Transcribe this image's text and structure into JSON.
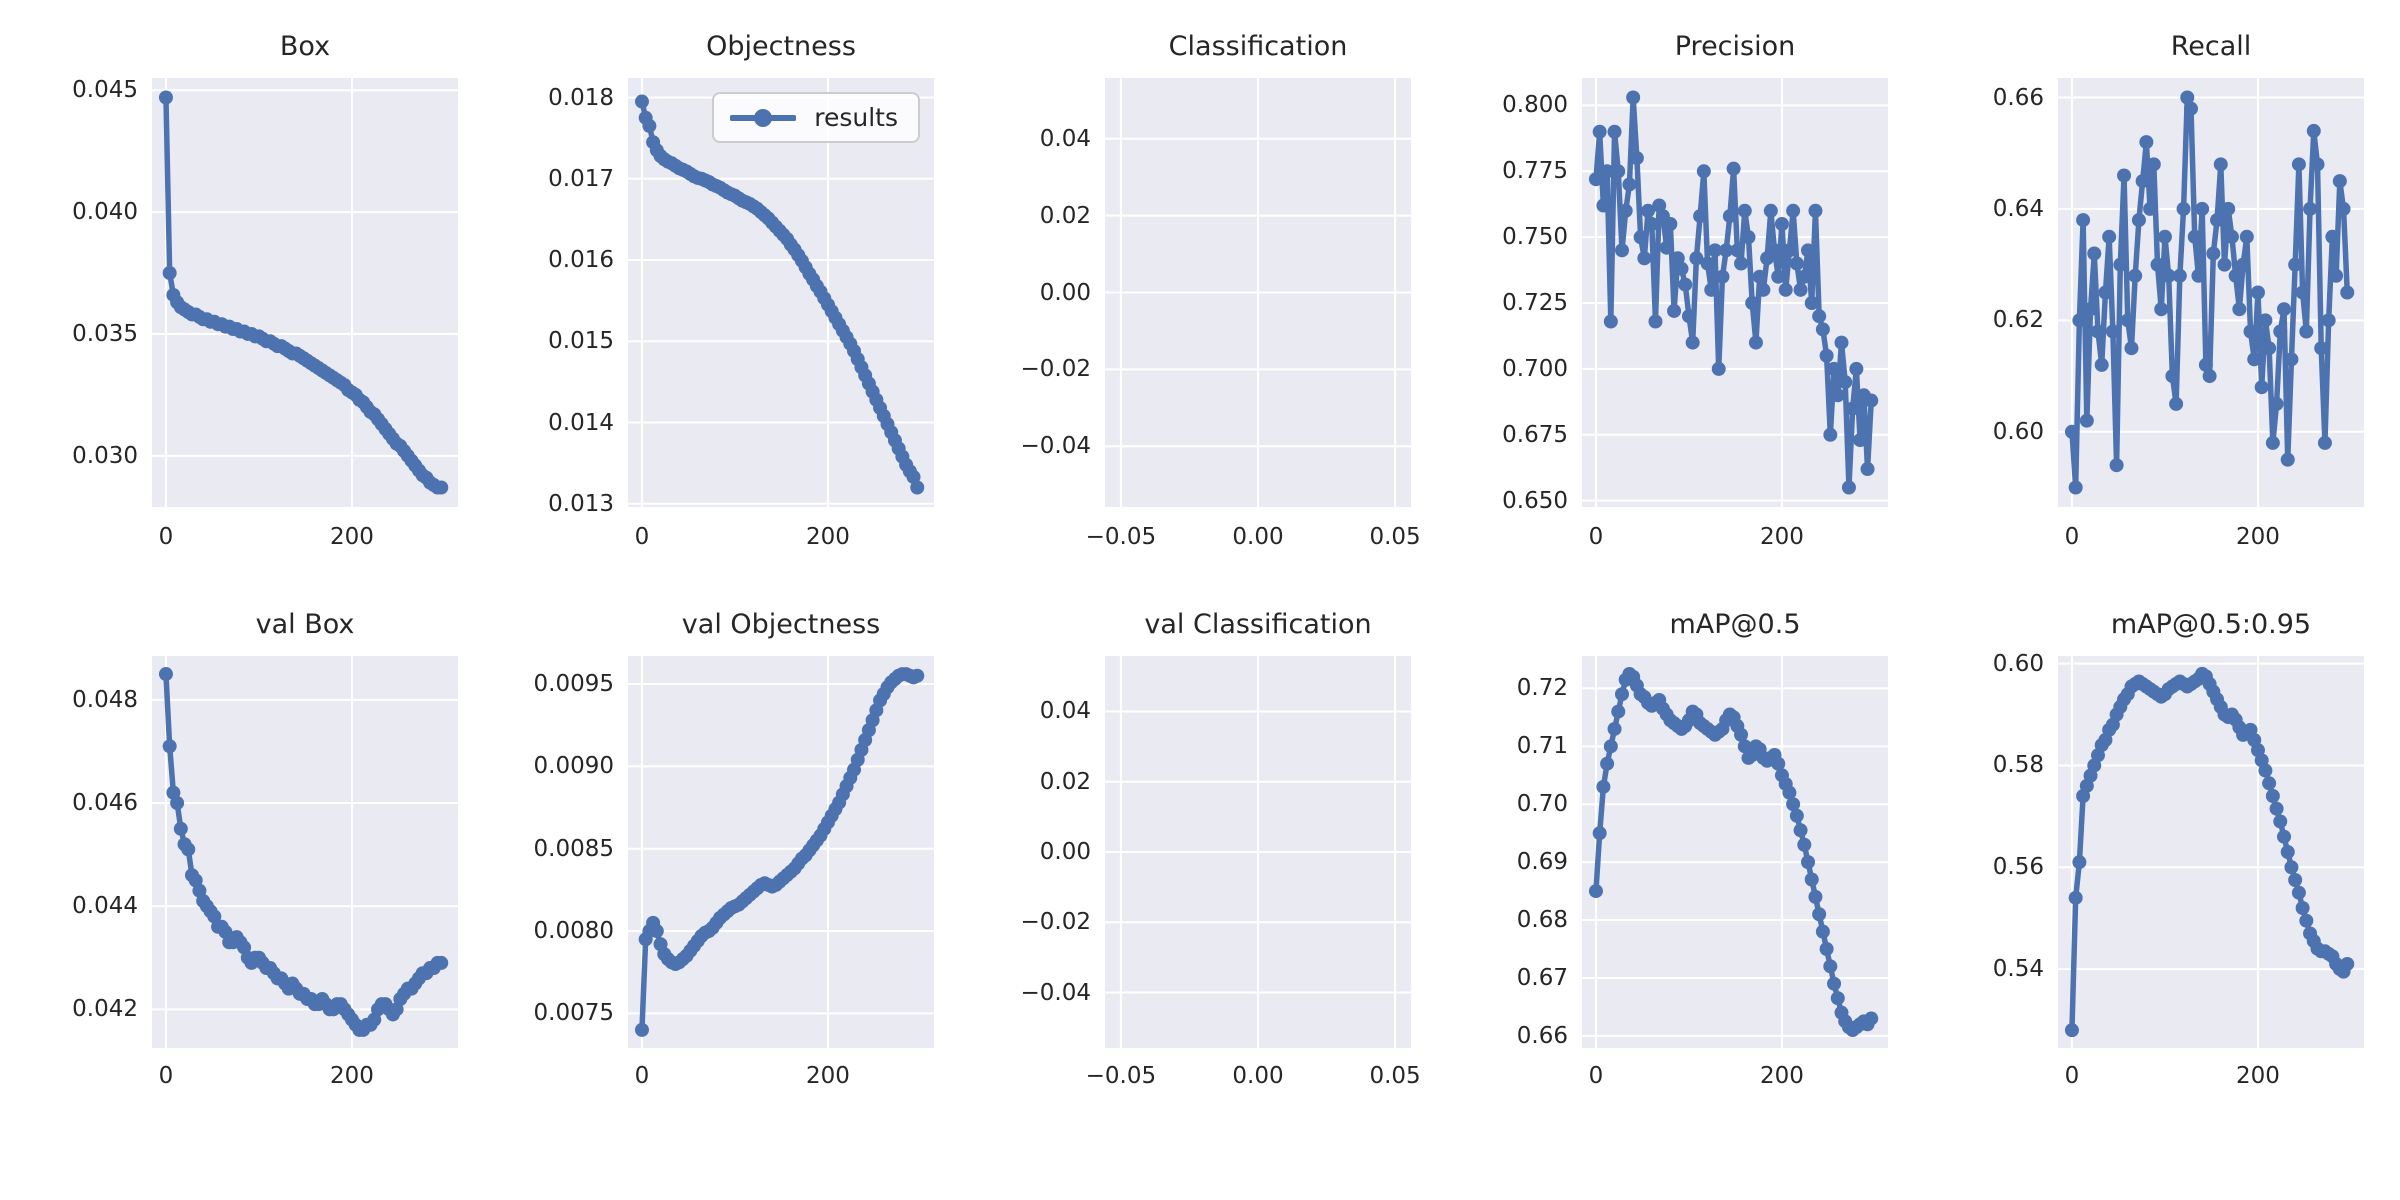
{
  "figure": {
    "background": "#ffffff",
    "axes_background": "#eaeaf2",
    "grid_color": "#ffffff",
    "line_color": "#4c72b0",
    "text_color": "#262626"
  },
  "legend": {
    "label": "results"
  },
  "epochs": [
    0,
    4,
    8,
    12,
    16,
    20,
    24,
    28,
    32,
    36,
    40,
    44,
    48,
    52,
    56,
    60,
    64,
    68,
    72,
    76,
    80,
    84,
    88,
    92,
    96,
    100,
    104,
    108,
    112,
    116,
    120,
    124,
    128,
    132,
    136,
    140,
    144,
    148,
    152,
    156,
    160,
    164,
    168,
    172,
    176,
    180,
    184,
    188,
    192,
    196,
    200,
    204,
    208,
    212,
    216,
    220,
    224,
    228,
    232,
    236,
    240,
    244,
    248,
    252,
    256,
    260,
    264,
    268,
    272,
    276,
    280,
    284,
    288,
    292,
    296
  ],
  "chart_data": [
    {
      "type": "line",
      "title": "Box",
      "series_name": "results",
      "xlim": [
        -15,
        314
      ],
      "ylim": [
        0.0279,
        0.0455
      ],
      "xticks": {
        "values": [
          0,
          200
        ],
        "labels": [
          "0",
          "200"
        ]
      },
      "yticks": {
        "values": [
          0.045,
          0.04,
          0.035,
          0.03
        ],
        "labels": [
          "0.045",
          "0.040",
          "0.035",
          "0.030"
        ]
      },
      "y": [
        0.0447,
        0.0375,
        0.0366,
        0.0363,
        0.0361,
        0.036,
        0.0359,
        0.0358,
        0.0358,
        0.0357,
        0.0356,
        0.0356,
        0.0355,
        0.0355,
        0.0354,
        0.0354,
        0.0353,
        0.0353,
        0.0352,
        0.0352,
        0.0351,
        0.0351,
        0.035,
        0.035,
        0.0349,
        0.0349,
        0.0348,
        0.0347,
        0.0347,
        0.0346,
        0.0345,
        0.0345,
        0.0344,
        0.0343,
        0.0342,
        0.0342,
        0.0341,
        0.034,
        0.0339,
        0.0338,
        0.0337,
        0.0336,
        0.0335,
        0.0334,
        0.0333,
        0.0332,
        0.0331,
        0.033,
        0.0329,
        0.0327,
        0.0326,
        0.0325,
        0.0323,
        0.0322,
        0.032,
        0.0318,
        0.0317,
        0.0315,
        0.0313,
        0.0311,
        0.0309,
        0.0307,
        0.0305,
        0.0304,
        0.0302,
        0.03,
        0.0298,
        0.0296,
        0.0294,
        0.0292,
        0.0291,
        0.0289,
        0.0288,
        0.0287,
        0.0287
      ]
    },
    {
      "type": "line",
      "title": "Objectness",
      "series_name": "results",
      "legend": true,
      "xlim": [
        -15,
        314
      ],
      "ylim": [
        0.01296,
        0.01824
      ],
      "xticks": {
        "values": [
          0,
          200
        ],
        "labels": [
          "0",
          "200"
        ]
      },
      "yticks": {
        "values": [
          0.018,
          0.017,
          0.016,
          0.015,
          0.014,
          0.013
        ],
        "labels": [
          "0.018",
          "0.017",
          "0.016",
          "0.015",
          "0.014",
          "0.013"
        ]
      },
      "y": [
        0.01795,
        0.01775,
        0.01765,
        0.01745,
        0.01735,
        0.01728,
        0.01724,
        0.01721,
        0.01719,
        0.01716,
        0.01713,
        0.01711,
        0.01709,
        0.01706,
        0.01703,
        0.01701,
        0.017,
        0.01698,
        0.01696,
        0.01693,
        0.01691,
        0.01689,
        0.01686,
        0.01683,
        0.01681,
        0.01679,
        0.01676,
        0.01673,
        0.01671,
        0.01669,
        0.01666,
        0.01663,
        0.01659,
        0.01655,
        0.01651,
        0.01646,
        0.01641,
        0.01636,
        0.01631,
        0.01626,
        0.01619,
        0.01613,
        0.01606,
        0.01599,
        0.01591,
        0.01583,
        0.01576,
        0.01568,
        0.01561,
        0.01553,
        0.01545,
        0.01537,
        0.01529,
        0.01521,
        0.01513,
        0.01505,
        0.01497,
        0.01488,
        0.01478,
        0.01468,
        0.01458,
        0.01448,
        0.01438,
        0.01428,
        0.01418,
        0.01408,
        0.01398,
        0.01388,
        0.01378,
        0.01368,
        0.01358,
        0.01348,
        0.0134,
        0.01333,
        0.0132
      ]
    },
    {
      "type": "empty",
      "title": "Classification",
      "xlim": [
        -0.0558,
        0.0558
      ],
      "ylim": [
        -0.0558,
        0.0558
      ],
      "xticks": {
        "values": [
          -0.05,
          0.0,
          0.05
        ],
        "labels": [
          "−0.05",
          "0.00",
          "0.05"
        ]
      },
      "yticks": {
        "values": [
          0.04,
          0.02,
          0.0,
          -0.02,
          -0.04
        ],
        "labels": [
          "0.04",
          "0.02",
          "0.00",
          "−0.02",
          "−0.04"
        ]
      }
    },
    {
      "type": "line",
      "title": "Precision",
      "series_name": "results",
      "xlim": [
        -15,
        314
      ],
      "ylim": [
        0.6476,
        0.8104
      ],
      "xticks": {
        "values": [
          0,
          200
        ],
        "labels": [
          "0",
          "200"
        ]
      },
      "yticks": {
        "values": [
          0.8,
          0.775,
          0.75,
          0.725,
          0.7,
          0.675,
          0.65
        ],
        "labels": [
          "0.800",
          "0.775",
          "0.750",
          "0.725",
          "0.700",
          "0.675",
          "0.650"
        ]
      },
      "y": [
        0.772,
        0.79,
        0.762,
        0.775,
        0.718,
        0.79,
        0.775,
        0.745,
        0.76,
        0.77,
        0.803,
        0.78,
        0.75,
        0.742,
        0.76,
        0.755,
        0.718,
        0.762,
        0.758,
        0.746,
        0.755,
        0.722,
        0.742,
        0.738,
        0.732,
        0.72,
        0.71,
        0.742,
        0.758,
        0.775,
        0.74,
        0.73,
        0.745,
        0.7,
        0.735,
        0.745,
        0.758,
        0.776,
        0.745,
        0.74,
        0.76,
        0.75,
        0.725,
        0.71,
        0.735,
        0.73,
        0.742,
        0.76,
        0.745,
        0.735,
        0.755,
        0.73,
        0.745,
        0.76,
        0.74,
        0.73,
        0.735,
        0.745,
        0.725,
        0.76,
        0.72,
        0.715,
        0.705,
        0.675,
        0.7,
        0.69,
        0.71,
        0.695,
        0.655,
        0.685,
        0.7,
        0.673,
        0.69,
        0.662,
        0.688
      ]
    },
    {
      "type": "line",
      "title": "Recall",
      "series_name": "results",
      "xlim": [
        -15,
        314
      ],
      "ylim": [
        0.5865,
        0.6635
      ],
      "xticks": {
        "values": [
          0,
          200
        ],
        "labels": [
          "0",
          "200"
        ]
      },
      "yticks": {
        "values": [
          0.66,
          0.64,
          0.62,
          0.6
        ],
        "labels": [
          "0.66",
          "0.64",
          "0.62",
          "0.60"
        ]
      },
      "y": [
        0.6,
        0.59,
        0.62,
        0.638,
        0.602,
        0.622,
        0.632,
        0.618,
        0.612,
        0.625,
        0.635,
        0.618,
        0.594,
        0.63,
        0.646,
        0.62,
        0.615,
        0.628,
        0.638,
        0.645,
        0.652,
        0.64,
        0.648,
        0.63,
        0.622,
        0.635,
        0.628,
        0.61,
        0.605,
        0.628,
        0.64,
        0.66,
        0.658,
        0.635,
        0.628,
        0.64,
        0.612,
        0.61,
        0.632,
        0.638,
        0.648,
        0.63,
        0.64,
        0.635,
        0.628,
        0.622,
        0.63,
        0.635,
        0.618,
        0.613,
        0.625,
        0.608,
        0.62,
        0.615,
        0.598,
        0.605,
        0.618,
        0.622,
        0.595,
        0.613,
        0.63,
        0.648,
        0.625,
        0.618,
        0.64,
        0.654,
        0.648,
        0.615,
        0.598,
        0.62,
        0.635,
        0.628,
        0.645,
        0.64,
        0.625
      ]
    },
    {
      "type": "line",
      "title": "val Box",
      "series_name": "results",
      "xlim": [
        -15,
        314
      ],
      "ylim": [
        0.04125,
        0.04885
      ],
      "xticks": {
        "values": [
          0,
          200
        ],
        "labels": [
          "0",
          "200"
        ]
      },
      "yticks": {
        "values": [
          0.048,
          0.046,
          0.044,
          0.042
        ],
        "labels": [
          "0.048",
          "0.046",
          "0.044",
          "0.042"
        ]
      },
      "y": [
        0.0485,
        0.0471,
        0.0462,
        0.046,
        0.0455,
        0.0452,
        0.0451,
        0.0446,
        0.0445,
        0.0443,
        0.0441,
        0.044,
        0.0439,
        0.0438,
        0.0436,
        0.0436,
        0.0435,
        0.0433,
        0.0433,
        0.0434,
        0.0433,
        0.0432,
        0.043,
        0.0429,
        0.043,
        0.043,
        0.0429,
        0.0428,
        0.0428,
        0.0427,
        0.0426,
        0.0426,
        0.0425,
        0.0424,
        0.0425,
        0.0424,
        0.0423,
        0.0423,
        0.0422,
        0.0422,
        0.0421,
        0.0421,
        0.0422,
        0.0421,
        0.042,
        0.042,
        0.0421,
        0.0421,
        0.042,
        0.0419,
        0.0418,
        0.0417,
        0.0416,
        0.0416,
        0.0417,
        0.0417,
        0.0418,
        0.042,
        0.0421,
        0.0421,
        0.042,
        0.0419,
        0.042,
        0.0422,
        0.0423,
        0.0424,
        0.0424,
        0.0425,
        0.0426,
        0.0427,
        0.0427,
        0.0428,
        0.0428,
        0.0429,
        0.0429
      ]
    },
    {
      "type": "line",
      "title": "val Objectness",
      "series_name": "results",
      "xlim": [
        -15,
        314
      ],
      "ylim": [
        0.00729,
        0.00967
      ],
      "xticks": {
        "values": [
          0,
          200
        ],
        "labels": [
          "0",
          "200"
        ]
      },
      "yticks": {
        "values": [
          0.0095,
          0.009,
          0.0085,
          0.008,
          0.0075
        ],
        "labels": [
          "0.0095",
          "0.0090",
          "0.0085",
          "0.0080",
          "0.0075"
        ]
      },
      "y": [
        0.0074,
        0.00795,
        0.008,
        0.00805,
        0.008,
        0.00792,
        0.00786,
        0.00783,
        0.00781,
        0.0078,
        0.00781,
        0.00783,
        0.00785,
        0.00788,
        0.00791,
        0.00794,
        0.00797,
        0.00799,
        0.008,
        0.00802,
        0.00805,
        0.00808,
        0.0081,
        0.00812,
        0.00814,
        0.00815,
        0.00816,
        0.00818,
        0.0082,
        0.00822,
        0.00824,
        0.00826,
        0.00828,
        0.00829,
        0.00828,
        0.00827,
        0.00828,
        0.0083,
        0.00832,
        0.00834,
        0.00836,
        0.00838,
        0.00841,
        0.00844,
        0.00846,
        0.00849,
        0.00852,
        0.00855,
        0.00858,
        0.00862,
        0.00866,
        0.0087,
        0.00874,
        0.00878,
        0.00883,
        0.00888,
        0.00893,
        0.00898,
        0.00904,
        0.0091,
        0.00916,
        0.00922,
        0.00928,
        0.00934,
        0.0094,
        0.00944,
        0.00948,
        0.00951,
        0.00953,
        0.00955,
        0.00956,
        0.00956,
        0.00955,
        0.00954,
        0.00955
      ]
    },
    {
      "type": "empty",
      "title": "val Classification",
      "xlim": [
        -0.0558,
        0.0558
      ],
      "ylim": [
        -0.0558,
        0.0558
      ],
      "xticks": {
        "values": [
          -0.05,
          0.0,
          0.05
        ],
        "labels": [
          "−0.05",
          "0.00",
          "0.05"
        ]
      },
      "yticks": {
        "values": [
          0.04,
          0.02,
          0.0,
          -0.02,
          -0.04
        ],
        "labels": [
          "0.04",
          "0.02",
          "0.00",
          "−0.02",
          "−0.04"
        ]
      }
    },
    {
      "type": "line",
      "title": "mAP@0.5",
      "series_name": "results",
      "xlim": [
        -15,
        314
      ],
      "ylim": [
        0.6579,
        0.7256
      ],
      "xticks": {
        "values": [
          0,
          200
        ],
        "labels": [
          "0",
          "200"
        ]
      },
      "yticks": {
        "values": [
          0.72,
          0.71,
          0.7,
          0.69,
          0.68,
          0.67,
          0.66
        ],
        "labels": [
          "0.72",
          "0.71",
          "0.70",
          "0.69",
          "0.68",
          "0.67",
          "0.66"
        ]
      },
      "y": [
        0.685,
        0.695,
        0.703,
        0.707,
        0.71,
        0.713,
        0.716,
        0.719,
        0.7215,
        0.7225,
        0.722,
        0.7205,
        0.719,
        0.7185,
        0.7175,
        0.717,
        0.7175,
        0.718,
        0.7165,
        0.7155,
        0.7145,
        0.714,
        0.7135,
        0.713,
        0.7135,
        0.7145,
        0.716,
        0.7155,
        0.714,
        0.7135,
        0.713,
        0.7125,
        0.712,
        0.7125,
        0.713,
        0.7145,
        0.7155,
        0.715,
        0.7135,
        0.712,
        0.71,
        0.708,
        0.7085,
        0.71,
        0.7095,
        0.708,
        0.7075,
        0.708,
        0.7085,
        0.707,
        0.705,
        0.7035,
        0.702,
        0.7,
        0.698,
        0.6955,
        0.693,
        0.69,
        0.687,
        0.684,
        0.681,
        0.678,
        0.675,
        0.672,
        0.669,
        0.6665,
        0.664,
        0.6625,
        0.6615,
        0.661,
        0.6615,
        0.662,
        0.6625,
        0.662,
        0.663
      ]
    },
    {
      "type": "line",
      "title": "mAP@0.5:0.95",
      "series_name": "results",
      "xlim": [
        -15,
        314
      ],
      "ylim": [
        0.5245,
        0.6015
      ],
      "xticks": {
        "values": [
          0,
          200
        ],
        "labels": [
          "0",
          "200"
        ]
      },
      "yticks": {
        "values": [
          0.6,
          0.58,
          0.56,
          0.54
        ],
        "labels": [
          "0.60",
          "0.58",
          "0.56",
          "0.54"
        ]
      },
      "y": [
        0.528,
        0.554,
        0.561,
        0.574,
        0.576,
        0.578,
        0.58,
        0.582,
        0.584,
        0.585,
        0.587,
        0.588,
        0.59,
        0.5915,
        0.593,
        0.594,
        0.5955,
        0.596,
        0.5965,
        0.596,
        0.5955,
        0.595,
        0.5945,
        0.594,
        0.5935,
        0.594,
        0.595,
        0.5955,
        0.596,
        0.5965,
        0.596,
        0.5955,
        0.596,
        0.5965,
        0.597,
        0.598,
        0.5975,
        0.596,
        0.5945,
        0.593,
        0.5915,
        0.59,
        0.5895,
        0.59,
        0.589,
        0.5875,
        0.586,
        0.5865,
        0.587,
        0.585,
        0.583,
        0.581,
        0.579,
        0.5765,
        0.574,
        0.5715,
        0.569,
        0.566,
        0.563,
        0.56,
        0.5575,
        0.555,
        0.552,
        0.5495,
        0.547,
        0.5455,
        0.544,
        0.5435,
        0.5435,
        0.543,
        0.5425,
        0.541,
        0.54,
        0.5395,
        0.541
      ]
    }
  ]
}
